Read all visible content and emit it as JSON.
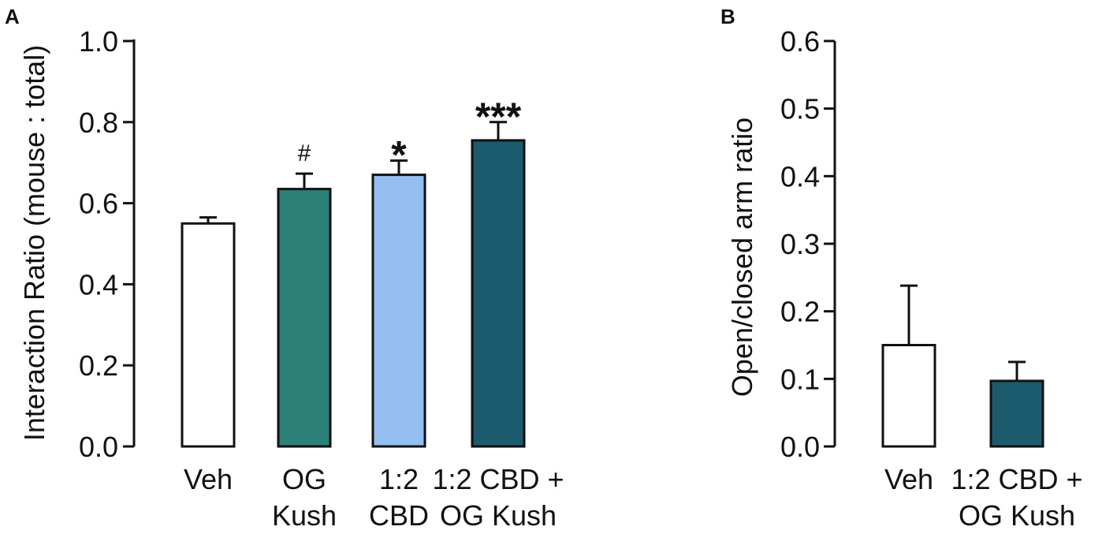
{
  "chart_data": [
    {
      "type": "bar",
      "panel": "A",
      "title": "",
      "xlabel": "",
      "ylabel": "Interaction Ratio (mouse : total)",
      "ylim": [
        0,
        1.0
      ],
      "yticks": [
        0.0,
        0.2,
        0.4,
        0.6,
        0.8,
        1.0
      ],
      "ytick_labels": [
        "0.0",
        "0.2",
        "0.4",
        "0.6",
        "0.8",
        "1.0"
      ],
      "categories": [
        [
          "Veh"
        ],
        [
          "OG",
          "Kush"
        ],
        [
          "1:2",
          "CBD"
        ],
        [
          "1:2 CBD +",
          "OG Kush"
        ]
      ],
      "values": [
        0.55,
        0.635,
        0.67,
        0.755
      ],
      "errors": [
        0.015,
        0.038,
        0.035,
        0.045
      ],
      "colors": [
        "#ffffff",
        "#2a7f77",
        "#94bff0",
        "#1c5a6e"
      ],
      "annotations": [
        "",
        "#",
        "*",
        "***"
      ],
      "grid": false,
      "legend": "none"
    },
    {
      "type": "bar",
      "panel": "B",
      "title": "",
      "xlabel": "",
      "ylabel": "Open/closed arm ratio",
      "ylim": [
        0,
        0.6
      ],
      "yticks": [
        0.0,
        0.1,
        0.2,
        0.3,
        0.4,
        0.5,
        0.6
      ],
      "ytick_labels": [
        "0.0",
        "0.1",
        "0.2",
        "0.3",
        "0.4",
        "0.5",
        "0.6"
      ],
      "categories": [
        [
          "Veh"
        ],
        [
          "1:2 CBD +",
          "OG Kush"
        ]
      ],
      "values": [
        0.15,
        0.097
      ],
      "errors": [
        0.088,
        0.028
      ],
      "colors": [
        "#ffffff",
        "#1c5a6e"
      ],
      "annotations": [
        "",
        ""
      ],
      "grid": false,
      "legend": "none"
    }
  ]
}
